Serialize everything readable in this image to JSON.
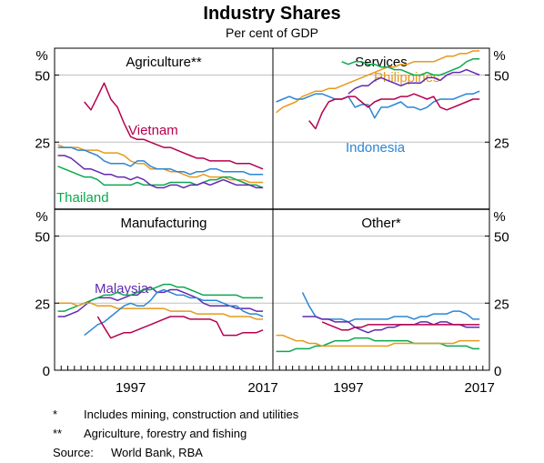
{
  "title": "Industry Shares",
  "subtitle": "Per cent of GDP",
  "y_unit": "%",
  "x_ticks": [
    "1997",
    "2017"
  ],
  "y_ticks": [
    "0",
    "25",
    "50"
  ],
  "colors": {
    "Vietnam": "#b5004f",
    "Philippines": "#e69a1b",
    "Indonesia": "#2a86d4",
    "Thailand": "#0aa84f",
    "Malaysia": "#6229b0",
    "grid": "#bfbfbf"
  },
  "notes": [
    {
      "mark": "*",
      "text": "Includes mining, construction and utilities"
    },
    {
      "mark": "**",
      "text": "Agriculture, forestry and fishing"
    }
  ],
  "source": {
    "label": "Source:",
    "text": "World Bank, RBA"
  },
  "chart_data": [
    {
      "type": "line",
      "title": "Agriculture**",
      "x": [
        1986,
        1987,
        1988,
        1989,
        1990,
        1991,
        1992,
        1993,
        1994,
        1995,
        1996,
        1997,
        1998,
        1999,
        2000,
        2001,
        2002,
        2003,
        2004,
        2005,
        2006,
        2007,
        2008,
        2009,
        2010,
        2011,
        2012,
        2013,
        2014,
        2015,
        2016,
        2017
      ],
      "ylim": [
        0,
        60
      ],
      "series": [
        {
          "name": "Vietnam",
          "labeled": true,
          "values": [
            null,
            null,
            null,
            null,
            40,
            37,
            42,
            47,
            41,
            38,
            32,
            27,
            26,
            26,
            25,
            24,
            23,
            23,
            22,
            21,
            20,
            19,
            19,
            18,
            18,
            18,
            18,
            17,
            17,
            17,
            16,
            15
          ]
        },
        {
          "name": "Philippines",
          "labeled": false,
          "values": [
            24,
            23,
            23,
            23,
            22,
            22,
            22,
            21,
            21,
            21,
            20,
            18,
            17,
            17,
            15,
            15,
            15,
            14,
            14,
            13,
            12,
            12,
            13,
            12,
            12,
            12,
            11,
            11,
            11,
            10,
            10,
            10
          ]
        },
        {
          "name": "Indonesia",
          "labeled": false,
          "values": [
            23,
            23,
            23,
            22,
            22,
            21,
            20,
            18,
            17,
            17,
            17,
            16,
            18,
            18,
            16,
            15,
            15,
            15,
            14,
            14,
            13,
            14,
            14,
            15,
            15,
            14,
            14,
            14,
            14,
            13,
            13,
            13
          ]
        },
        {
          "name": "Thailand",
          "labeled": true,
          "values": [
            16,
            15,
            14,
            13,
            12,
            12,
            11,
            9,
            9,
            9,
            9,
            9,
            10,
            9,
            9,
            9,
            9,
            10,
            10,
            10,
            10,
            9,
            10,
            11,
            11,
            12,
            12,
            11,
            10,
            9,
            9,
            8
          ]
        },
        {
          "name": "Malaysia",
          "labeled": false,
          "values": [
            20,
            20,
            19,
            17,
            15,
            15,
            14,
            13,
            13,
            12,
            12,
            11,
            12,
            11,
            9,
            8,
            8,
            9,
            9,
            8,
            9,
            9,
            10,
            9,
            10,
            11,
            10,
            9,
            9,
            9,
            8,
            8
          ]
        }
      ]
    },
    {
      "type": "line",
      "title": "Services",
      "x": [
        1986,
        1987,
        1988,
        1989,
        1990,
        1991,
        1992,
        1993,
        1994,
        1995,
        1996,
        1997,
        1998,
        1999,
        2000,
        2001,
        2002,
        2003,
        2004,
        2005,
        2006,
        2007,
        2008,
        2009,
        2010,
        2011,
        2012,
        2013,
        2014,
        2015,
        2016,
        2017
      ],
      "ylim": [
        0,
        60
      ],
      "series": [
        {
          "name": "Philippines",
          "labeled": true,
          "values": [
            36,
            38,
            39,
            40,
            42,
            43,
            44,
            44,
            45,
            45,
            46,
            47,
            48,
            49,
            50,
            51,
            52,
            53,
            53,
            54,
            54,
            55,
            55,
            55,
            55,
            56,
            57,
            57,
            58,
            58,
            59,
            59
          ]
        },
        {
          "name": "Thailand",
          "labeled": false,
          "values": [
            null,
            null,
            null,
            null,
            null,
            null,
            null,
            null,
            null,
            null,
            55,
            54,
            55,
            55,
            54,
            54,
            53,
            53,
            52,
            52,
            51,
            50,
            50,
            51,
            50,
            50,
            51,
            52,
            53,
            55,
            56,
            56
          ]
        },
        {
          "name": "Malaysia",
          "labeled": false,
          "values": [
            null,
            null,
            null,
            null,
            null,
            null,
            null,
            null,
            null,
            null,
            null,
            43,
            45,
            46,
            46,
            48,
            49,
            48,
            47,
            46,
            47,
            47,
            47,
            49,
            49,
            48,
            50,
            51,
            51,
            52,
            51,
            50
          ]
        },
        {
          "name": "Indonesia",
          "labeled": true,
          "values": [
            40,
            41,
            42,
            41,
            41,
            42,
            43,
            43,
            42,
            41,
            41,
            42,
            38,
            39,
            39,
            34,
            38,
            38,
            39,
            40,
            38,
            38,
            37,
            38,
            40,
            41,
            41,
            41,
            42,
            43,
            43,
            44
          ]
        },
        {
          "name": "Vietnam",
          "labeled": false,
          "values": [
            null,
            null,
            null,
            null,
            null,
            33,
            30,
            36,
            40,
            41,
            41,
            42,
            42,
            40,
            38,
            40,
            41,
            41,
            41,
            42,
            42,
            43,
            42,
            41,
            42,
            38,
            37,
            38,
            39,
            40,
            41,
            41
          ]
        }
      ]
    },
    {
      "type": "line",
      "title": "Manufacturing",
      "x": [
        1986,
        1987,
        1988,
        1989,
        1990,
        1991,
        1992,
        1993,
        1994,
        1995,
        1996,
        1997,
        1998,
        1999,
        2000,
        2001,
        2002,
        2003,
        2004,
        2005,
        2006,
        2007,
        2008,
        2009,
        2010,
        2011,
        2012,
        2013,
        2014,
        2015,
        2016,
        2017
      ],
      "ylim": [
        0,
        60
      ],
      "series": [
        {
          "name": "Malaysia",
          "labeled": true,
          "values": [
            20,
            20,
            21,
            22,
            24,
            26,
            27,
            27,
            27,
            26,
            27,
            28,
            28,
            30,
            31,
            29,
            29,
            30,
            30,
            29,
            28,
            27,
            25,
            24,
            24,
            24,
            24,
            23,
            23,
            23,
            22,
            22
          ]
        },
        {
          "name": "Thailand",
          "labeled": false,
          "values": [
            22,
            22,
            23,
            24,
            25,
            26,
            27,
            28,
            28,
            29,
            28,
            28,
            29,
            30,
            30,
            31,
            32,
            32,
            31,
            31,
            30,
            29,
            28,
            28,
            28,
            28,
            28,
            28,
            27,
            27,
            27,
            27
          ]
        },
        {
          "name": "Philippines",
          "labeled": false,
          "values": [
            25,
            25,
            25,
            24,
            25,
            25,
            24,
            24,
            24,
            23,
            23,
            23,
            23,
            23,
            23,
            23,
            23,
            22,
            22,
            22,
            22,
            21,
            21,
            21,
            21,
            21,
            20,
            20,
            20,
            20,
            19,
            19
          ]
        },
        {
          "name": "Indonesia",
          "labeled": false,
          "values": [
            null,
            null,
            null,
            null,
            13,
            15,
            17,
            18,
            20,
            22,
            24,
            25,
            24,
            24,
            26,
            29,
            30,
            29,
            28,
            28,
            27,
            27,
            26,
            26,
            26,
            25,
            24,
            24,
            22,
            21,
            21,
            20
          ]
        },
        {
          "name": "Vietnam",
          "labeled": false,
          "values": [
            null,
            null,
            null,
            null,
            null,
            null,
            20,
            16,
            12,
            13,
            14,
            14,
            15,
            16,
            17,
            18,
            19,
            20,
            20,
            20,
            19,
            19,
            19,
            19,
            18,
            13,
            13,
            13,
            14,
            14,
            14,
            15
          ]
        }
      ]
    },
    {
      "type": "line",
      "title": "Other*",
      "x": [
        1986,
        1987,
        1988,
        1989,
        1990,
        1991,
        1992,
        1993,
        1994,
        1995,
        1996,
        1997,
        1998,
        1999,
        2000,
        2001,
        2002,
        2003,
        2004,
        2005,
        2006,
        2007,
        2008,
        2009,
        2010,
        2011,
        2012,
        2013,
        2014,
        2015,
        2016,
        2017
      ],
      "ylim": [
        0,
        60
      ],
      "series": [
        {
          "name": "Indonesia",
          "labeled": false,
          "values": [
            null,
            null,
            null,
            null,
            29,
            24,
            20,
            19,
            19,
            19,
            19,
            18,
            19,
            19,
            19,
            19,
            19,
            19,
            20,
            20,
            20,
            19,
            20,
            20,
            21,
            21,
            21,
            22,
            22,
            21,
            19,
            19
          ]
        },
        {
          "name": "Malaysia",
          "labeled": false,
          "values": [
            null,
            null,
            null,
            null,
            20,
            20,
            20,
            19,
            19,
            18,
            18,
            18,
            16,
            15,
            14,
            15,
            15,
            16,
            16,
            17,
            17,
            17,
            18,
            18,
            17,
            18,
            18,
            17,
            17,
            16,
            16,
            16
          ]
        },
        {
          "name": "Vietnam",
          "labeled": false,
          "values": [
            null,
            null,
            null,
            null,
            null,
            null,
            null,
            18,
            17,
            16,
            15,
            15,
            16,
            16,
            17,
            17,
            17,
            17,
            17,
            17,
            17,
            17,
            17,
            17,
            17,
            17,
            17,
            17,
            17,
            17,
            17,
            17
          ]
        },
        {
          "name": "Thailand",
          "labeled": false,
          "values": [
            7,
            7,
            7,
            8,
            8,
            8,
            9,
            9,
            10,
            11,
            11,
            11,
            12,
            12,
            12,
            11,
            11,
            11,
            11,
            11,
            11,
            10,
            10,
            10,
            10,
            10,
            9,
            9,
            9,
            9,
            8,
            8
          ]
        },
        {
          "name": "Philippines",
          "labeled": false,
          "values": [
            13,
            13,
            12,
            11,
            11,
            10,
            10,
            9,
            9,
            9,
            9,
            9,
            9,
            9,
            9,
            9,
            9,
            9,
            10,
            10,
            10,
            10,
            10,
            10,
            10,
            10,
            10,
            10,
            11,
            11,
            11,
            11
          ]
        }
      ]
    }
  ]
}
